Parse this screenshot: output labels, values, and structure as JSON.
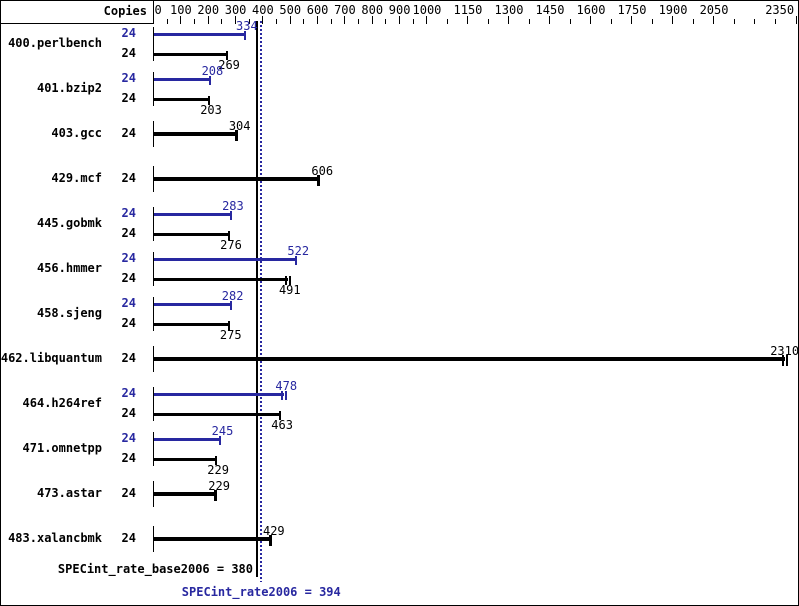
{
  "header": {
    "copies_label": "Copies"
  },
  "colors": {
    "peak_blue": "#2828a0",
    "base_black": "#000000",
    "background": "#ffffff"
  },
  "chart_data": {
    "type": "bar",
    "orientation": "horizontal",
    "title": "",
    "xlabel": "",
    "ylabel": "Copies",
    "x_axis": {
      "min": 0,
      "max": 2350,
      "labeled_ticks": [
        0,
        100,
        200,
        300,
        400,
        500,
        600,
        700,
        800,
        900,
        1000,
        1150,
        1300,
        1450,
        1600,
        1750,
        1900,
        2050,
        2350
      ],
      "minor_step_below_1000": 50,
      "minor_step_above_1000": 75,
      "grid": false
    },
    "legend": {
      "peak_color_meaning": "peak result (blue)",
      "base_color_meaning": "base result (black)"
    },
    "benchmarks": [
      {
        "name": "400.perlbench",
        "copies": "24",
        "peak": 334,
        "base": 269
      },
      {
        "name": "401.bzip2",
        "copies": "24",
        "peak": 208,
        "base": 203
      },
      {
        "name": "403.gcc",
        "copies": "24",
        "peak": null,
        "base": 304
      },
      {
        "name": "429.mcf",
        "copies": "24",
        "peak": null,
        "base": 606
      },
      {
        "name": "445.gobmk",
        "copies": "24",
        "peak": 283,
        "base": 276
      },
      {
        "name": "456.hmmer",
        "copies": "24",
        "peak": 522,
        "base": 491,
        "base_marker": "double"
      },
      {
        "name": "458.sjeng",
        "copies": "24",
        "peak": 282,
        "base": 275
      },
      {
        "name": "462.libquantum",
        "copies": "24",
        "peak": null,
        "base": 2310,
        "base_marker": "double"
      },
      {
        "name": "464.h264ref",
        "copies": "24",
        "peak": 478,
        "base": 463,
        "peak_marker": "double"
      },
      {
        "name": "471.omnetpp",
        "copies": "24",
        "peak": 245,
        "base": 229
      },
      {
        "name": "473.astar",
        "copies": "24",
        "peak": null,
        "base": 229
      },
      {
        "name": "483.xalancbmk",
        "copies": "24",
        "peak": null,
        "base": 429
      }
    ],
    "summary": [
      {
        "label": "SPECint_rate_base2006 = 380",
        "value": 380,
        "line_style": "solid",
        "color_key": "base_black"
      },
      {
        "label": "SPECint_rate2006 = 394",
        "value": 394,
        "line_style": "dotted",
        "color_key": "peak_blue"
      }
    ]
  }
}
